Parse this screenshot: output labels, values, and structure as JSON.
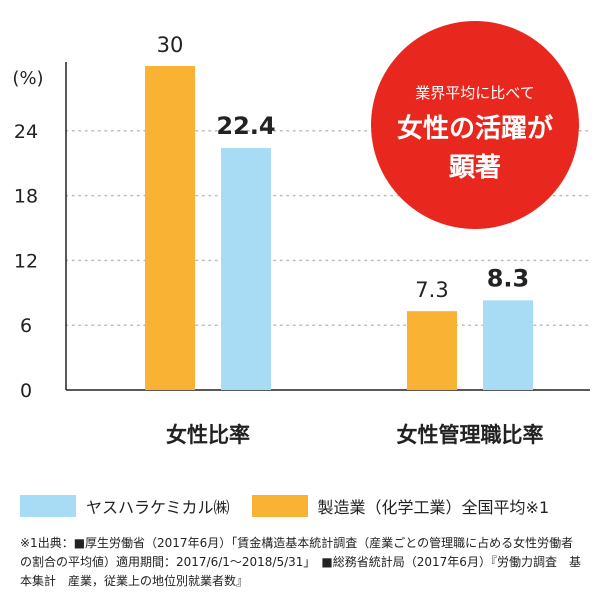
{
  "chart_data": {
    "type": "bar",
    "ylabel": "(%)",
    "ylim": [
      0,
      30
    ],
    "yticks": [
      0,
      6,
      12,
      18,
      24
    ],
    "categories": [
      "女性比率",
      "女性管理職比率"
    ],
    "series": [
      {
        "name": "製造業（化学工業）全国平均※1",
        "values": [
          30,
          7.3
        ],
        "labels": [
          "30",
          "7.3"
        ],
        "color": "#F9B233",
        "bold": false
      },
      {
        "name": "ヤスハラケミカル㈱",
        "values": [
          22.4,
          8.3
        ],
        "labels": [
          "22.4",
          "8.3"
        ],
        "color": "#A8DCF5",
        "bold": true
      }
    ],
    "grid": "dotted-horizontal",
    "annotation": {
      "lines": [
        "業界平均に比べて",
        "女性の活躍が",
        "顕著"
      ],
      "color": "#E8281E"
    }
  },
  "legend": [
    {
      "label": "ヤスハラケミカル㈱",
      "color": "#A8DCF5"
    },
    {
      "label": "製造業（化学工業）全国平均※1",
      "color": "#F9B233"
    }
  ],
  "footnote": "※1出典：■厚生労働省（2017年6月）「賃金構造基本統計調査（産業ごとの管理職に占める女性労働者の割合の平均値）適用期間：2017/6/1〜2018/5/31」　■総務省統計局（2017年6月）『労働力調査　基本集計　産業，従業上の地位別就業者数』"
}
